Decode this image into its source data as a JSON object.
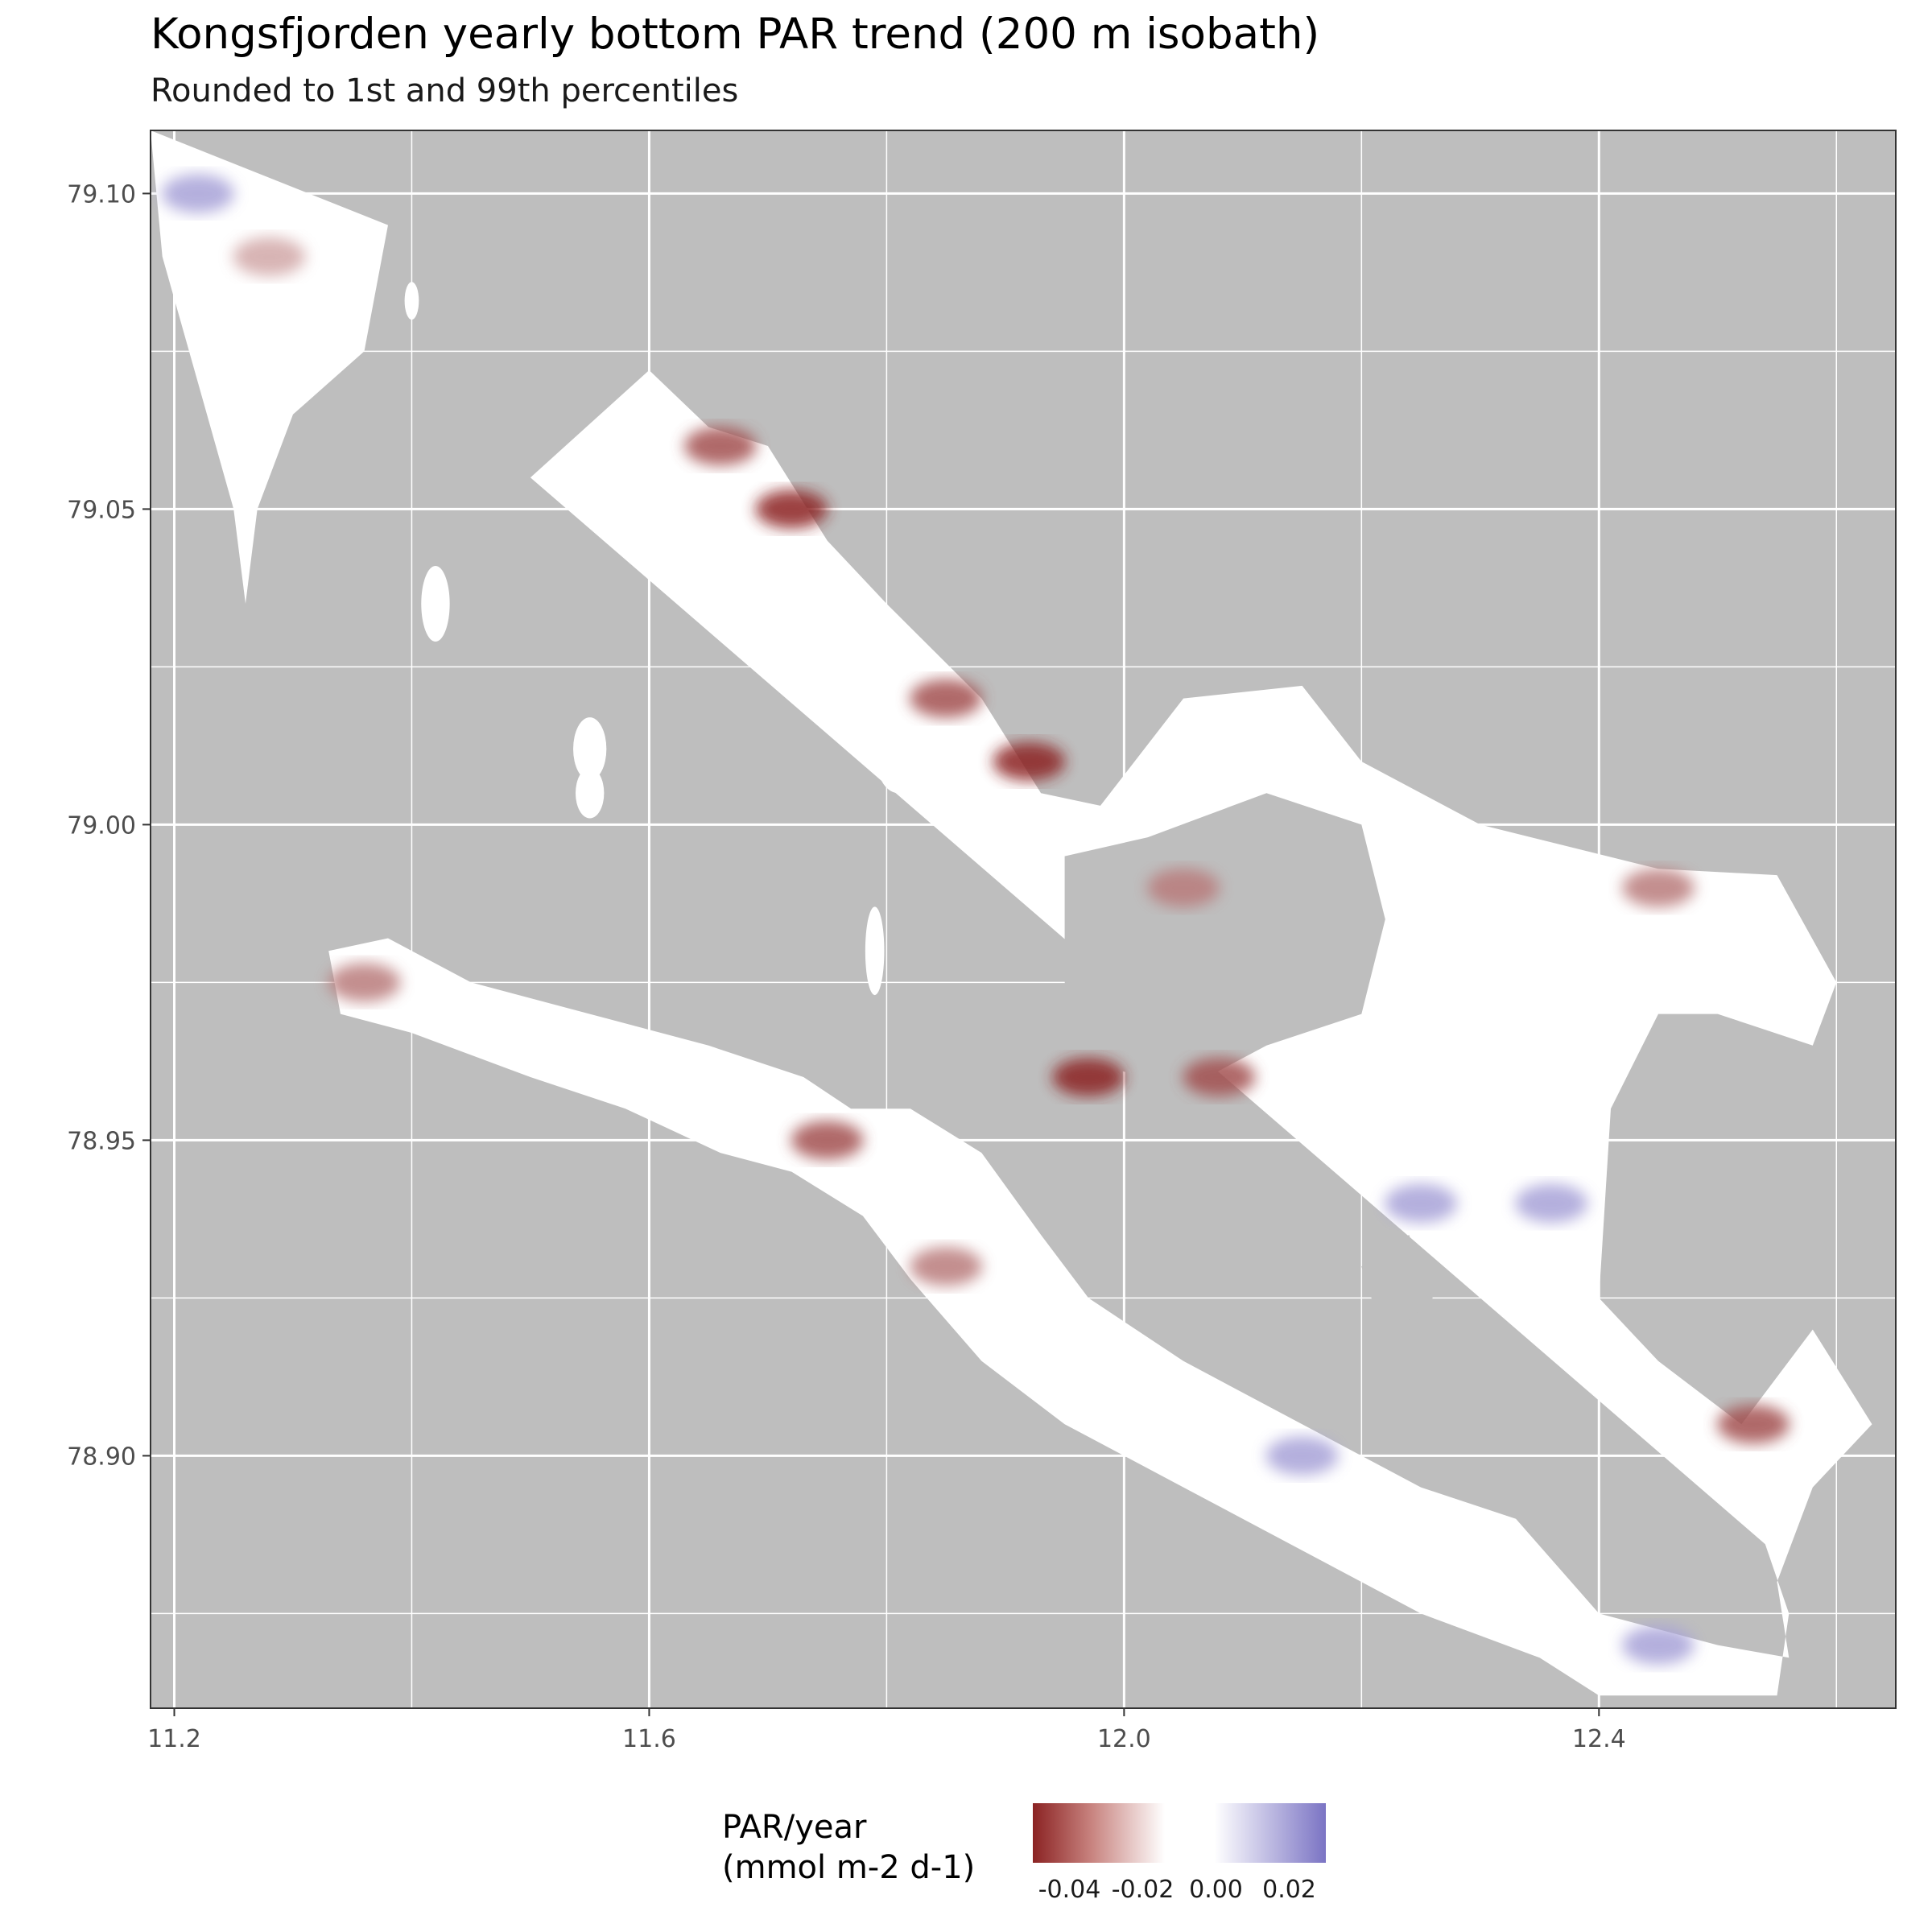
{
  "title": "Kongsfjorden yearly bottom PAR trend (200 m isobath)",
  "subtitle": "Rounded to 1st and 99th percentiles",
  "legend": {
    "title_line1": "PAR/year",
    "title_line2": "(mmol m-2 d-1)",
    "ticks": [
      "-0.04",
      "-0.02",
      "0.00",
      "0.02"
    ],
    "tick_values": [
      -0.04,
      -0.02,
      0.0,
      0.02
    ],
    "range": [
      -0.05,
      0.03
    ],
    "colors": {
      "low": "#8b2323",
      "mid": "#ffffff",
      "high": "#7b74c4"
    }
  },
  "colors": {
    "land": "#bebebe",
    "water": "#ffffff",
    "grid": "#ffffff",
    "negative": "#8b2323",
    "positive": "#7b74c4"
  },
  "chart_data": {
    "type": "heatmap",
    "title": "Kongsfjorden yearly bottom PAR trend (200 m isobath)",
    "subtitle": "Rounded to 1st and 99th percentiles",
    "xlabel": "",
    "ylabel": "",
    "xlim": [
      11.18,
      12.65
    ],
    "ylim": [
      78.86,
      79.11
    ],
    "x_ticks": [
      11.2,
      11.6,
      12.0,
      12.4
    ],
    "x_tick_labels": [
      "11.2",
      "11.6",
      "12.0",
      "12.4"
    ],
    "y_ticks": [
      78.9,
      78.95,
      79.0,
      79.05,
      79.1
    ],
    "y_tick_labels": [
      "78.90",
      "78.95",
      "79.00",
      "79.05",
      "79.10"
    ],
    "x_minor_grid": [
      11.4,
      11.8,
      12.2,
      12.6
    ],
    "y_minor_grid": [
      78.875,
      78.925,
      78.975,
      79.025,
      79.075
    ],
    "grid": true,
    "legend_position": "bottom",
    "fill_scale": {
      "name": "PAR/year (mmol m-2 d-1)",
      "limits": [
        -0.05,
        0.03
      ],
      "breaks": [
        -0.04,
        -0.02,
        0.0,
        0.02
      ]
    },
    "water_regions": [
      {
        "region": "northwest triangle",
        "polygon": [
          [
            11.18,
            79.11
          ],
          [
            11.38,
            79.095
          ],
          [
            11.36,
            79.075
          ],
          [
            11.3,
            79.065
          ],
          [
            11.27,
            79.05
          ],
          [
            11.26,
            79.035
          ],
          [
            11.25,
            79.05
          ],
          [
            11.22,
            79.07
          ],
          [
            11.19,
            79.09
          ]
        ]
      },
      {
        "region": "outer fjord",
        "polygon": [
          [
            11.5,
            79.055
          ],
          [
            11.6,
            79.072
          ],
          [
            11.65,
            79.063
          ],
          [
            11.7,
            79.06
          ],
          [
            11.75,
            79.045
          ],
          [
            11.8,
            79.035
          ],
          [
            11.88,
            79.02
          ],
          [
            11.93,
            79.005
          ],
          [
            11.98,
            79.003
          ],
          [
            12.05,
            79.02
          ],
          [
            12.15,
            79.022
          ],
          [
            12.2,
            79.01
          ],
          [
            12.3,
            79.0
          ],
          [
            12.45,
            78.993
          ],
          [
            12.55,
            78.992
          ],
          [
            12.6,
            78.975
          ],
          [
            12.58,
            78.965
          ],
          [
            12.5,
            78.97
          ],
          [
            12.45,
            78.97
          ],
          [
            12.41,
            78.955
          ],
          [
            12.4,
            78.925
          ],
          [
            12.45,
            78.915
          ],
          [
            12.52,
            78.905
          ],
          [
            12.58,
            78.92
          ],
          [
            12.63,
            78.905
          ],
          [
            12.58,
            78.895
          ],
          [
            12.55,
            78.88
          ],
          [
            12.56,
            78.868
          ],
          [
            12.5,
            78.87
          ],
          [
            12.4,
            78.875
          ],
          [
            12.33,
            78.89
          ],
          [
            12.25,
            78.895
          ],
          [
            12.15,
            78.905
          ],
          [
            12.05,
            78.915
          ],
          [
            11.97,
            78.925
          ],
          [
            11.93,
            78.935
          ],
          [
            11.88,
            78.948
          ],
          [
            11.82,
            78.955
          ],
          [
            11.77,
            78.955
          ],
          [
            11.73,
            78.96
          ],
          [
            11.65,
            78.965
          ],
          [
            11.55,
            78.97
          ],
          [
            11.45,
            78.975
          ],
          [
            11.38,
            78.982
          ],
          [
            11.33,
            78.98
          ],
          [
            11.34,
            78.97
          ],
          [
            11.4,
            78.967
          ],
          [
            11.5,
            78.96
          ],
          [
            11.58,
            78.955
          ],
          [
            11.66,
            78.948
          ],
          [
            11.72,
            78.945
          ],
          [
            11.78,
            78.938
          ],
          [
            11.82,
            78.928
          ],
          [
            11.88,
            78.915
          ],
          [
            11.95,
            78.905
          ],
          [
            12.05,
            78.895
          ],
          [
            12.15,
            78.885
          ],
          [
            12.25,
            78.875
          ],
          [
            12.35,
            78.868
          ],
          [
            12.4,
            78.862
          ],
          [
            12.55,
            78.862
          ],
          [
            12.56,
            78.875
          ],
          [
            12.54,
            78.886
          ]
        ]
      }
    ],
    "trend_cells": [
      {
        "x": 11.22,
        "y": 79.1,
        "value": 0.02
      },
      {
        "x": 11.28,
        "y": 79.09,
        "value": -0.02
      },
      {
        "x": 11.66,
        "y": 79.06,
        "value": -0.04
      },
      {
        "x": 11.72,
        "y": 79.05,
        "value": -0.05
      },
      {
        "x": 11.85,
        "y": 79.02,
        "value": -0.04
      },
      {
        "x": 11.92,
        "y": 79.01,
        "value": -0.05
      },
      {
        "x": 12.05,
        "y": 78.99,
        "value": -0.03
      },
      {
        "x": 11.97,
        "y": 78.96,
        "value": -0.05
      },
      {
        "x": 12.08,
        "y": 78.96,
        "value": -0.04
      },
      {
        "x": 11.36,
        "y": 78.975,
        "value": -0.03
      },
      {
        "x": 11.75,
        "y": 78.95,
        "value": -0.04
      },
      {
        "x": 11.85,
        "y": 78.93,
        "value": -0.03
      },
      {
        "x": 12.25,
        "y": 78.94,
        "value": 0.02
      },
      {
        "x": 12.36,
        "y": 78.94,
        "value": 0.02
      },
      {
        "x": 12.15,
        "y": 78.9,
        "value": 0.02
      },
      {
        "x": 12.45,
        "y": 78.87,
        "value": 0.02
      },
      {
        "x": 12.53,
        "y": 78.905,
        "value": -0.04
      },
      {
        "x": 12.45,
        "y": 78.99,
        "value": -0.03
      }
    ]
  }
}
